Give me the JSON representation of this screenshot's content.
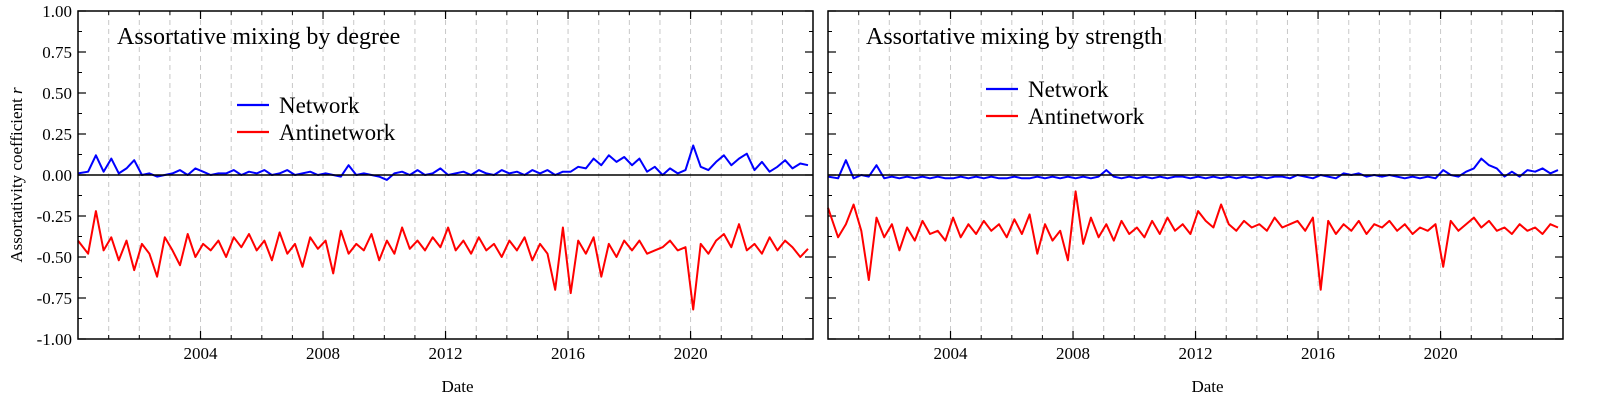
{
  "figure": {
    "ylabel": "Assortativity coefficient r",
    "ylabel_text": "Assortativity coefficient ",
    "ylabel_var": "r"
  },
  "chart_data": [
    {
      "type": "line",
      "title": "Assortative mixing by degree",
      "xlabel": "Date",
      "ylabel": "Assortativity coefficient r",
      "xlim": [
        "2000-01-01",
        "2023-12-31"
      ],
      "ylim": [
        -1.0,
        1.0
      ],
      "x_ticks": [
        "2004",
        "2008",
        "2012",
        "2016",
        "2020"
      ],
      "y_ticks": [
        "1.00",
        "0.75",
        "0.50",
        "0.25",
        "0.00",
        "-0.25",
        "-0.50",
        "-0.75",
        "-1.00"
      ],
      "grid": "dashed vertical lines at each year",
      "reference_line_y": 0.0,
      "legend": [
        "Network",
        "Antinetwork"
      ],
      "series": [
        {
          "name": "Network",
          "color": "#0000ff",
          "x": [
            "2000-01",
            "2000-05",
            "2000-08",
            "2000-11",
            "2001-02",
            "2001-05",
            "2001-08",
            "2001-11",
            "2002-02",
            "2002-05",
            "2002-08",
            "2002-11",
            "2003-02",
            "2003-05",
            "2003-08",
            "2003-11",
            "2004-02",
            "2004-05",
            "2004-08",
            "2004-11",
            "2005-02",
            "2005-05",
            "2005-08",
            "2005-11",
            "2006-02",
            "2006-05",
            "2006-08",
            "2006-11",
            "2007-02",
            "2007-05",
            "2007-08",
            "2007-11",
            "2008-02",
            "2008-05",
            "2008-08",
            "2008-11",
            "2009-02",
            "2009-05",
            "2009-08",
            "2009-11",
            "2010-02",
            "2010-05",
            "2010-08",
            "2010-11",
            "2011-02",
            "2011-05",
            "2011-08",
            "2011-11",
            "2012-02",
            "2012-05",
            "2012-08",
            "2012-11",
            "2013-02",
            "2013-05",
            "2013-08",
            "2013-11",
            "2014-02",
            "2014-05",
            "2014-08",
            "2014-11",
            "2015-02",
            "2015-05",
            "2015-08",
            "2015-11",
            "2016-02",
            "2016-05",
            "2016-08",
            "2016-11",
            "2017-02",
            "2017-05",
            "2017-08",
            "2017-11",
            "2018-02",
            "2018-05",
            "2018-08",
            "2018-11",
            "2019-02",
            "2019-05",
            "2019-08",
            "2019-11",
            "2020-02",
            "2020-05",
            "2020-08",
            "2020-11",
            "2021-02",
            "2021-05",
            "2021-08",
            "2021-11",
            "2022-02",
            "2022-05",
            "2022-08",
            "2022-11",
            "2023-02",
            "2023-05",
            "2023-08",
            "2023-11"
          ],
          "values": [
            0.01,
            0.02,
            0.12,
            0.02,
            0.1,
            0.01,
            0.04,
            0.09,
            0.0,
            0.01,
            -0.01,
            0.0,
            0.01,
            0.03,
            0.0,
            0.04,
            0.02,
            0.0,
            0.01,
            0.01,
            0.03,
            0.0,
            0.02,
            0.01,
            0.03,
            0.0,
            0.01,
            0.03,
            0.0,
            0.01,
            0.02,
            0.0,
            0.01,
            0.0,
            -0.01,
            0.06,
            0.0,
            0.01,
            0.0,
            -0.01,
            -0.03,
            0.01,
            0.02,
            0.0,
            0.03,
            0.0,
            0.01,
            0.04,
            0.0,
            0.01,
            0.02,
            0.0,
            0.03,
            0.01,
            0.0,
            0.03,
            0.01,
            0.02,
            0.0,
            0.03,
            0.01,
            0.03,
            0.0,
            0.02,
            0.02,
            0.05,
            0.04,
            0.1,
            0.06,
            0.12,
            0.08,
            0.11,
            0.06,
            0.1,
            0.02,
            0.05,
            0.0,
            0.04,
            0.01,
            0.03,
            0.18,
            0.05,
            0.03,
            0.08,
            0.12,
            0.06,
            0.1,
            0.13,
            0.03,
            0.08,
            0.02,
            0.05,
            0.09,
            0.04,
            0.07,
            0.06
          ]
        },
        {
          "name": "Antinetwork",
          "color": "#ff0000",
          "x": [
            "2000-01",
            "2000-05",
            "2000-08",
            "2000-11",
            "2001-02",
            "2001-05",
            "2001-08",
            "2001-11",
            "2002-02",
            "2002-05",
            "2002-08",
            "2002-11",
            "2003-02",
            "2003-05",
            "2003-08",
            "2003-11",
            "2004-02",
            "2004-05",
            "2004-08",
            "2004-11",
            "2005-02",
            "2005-05",
            "2005-08",
            "2005-11",
            "2006-02",
            "2006-05",
            "2006-08",
            "2006-11",
            "2007-02",
            "2007-05",
            "2007-08",
            "2007-11",
            "2008-02",
            "2008-05",
            "2008-08",
            "2008-11",
            "2009-02",
            "2009-05",
            "2009-08",
            "2009-11",
            "2010-02",
            "2010-05",
            "2010-08",
            "2010-11",
            "2011-02",
            "2011-05",
            "2011-08",
            "2011-11",
            "2012-02",
            "2012-05",
            "2012-08",
            "2012-11",
            "2013-02",
            "2013-05",
            "2013-08",
            "2013-11",
            "2014-02",
            "2014-05",
            "2014-08",
            "2014-11",
            "2015-02",
            "2015-05",
            "2015-08",
            "2015-11",
            "2016-02",
            "2016-05",
            "2016-08",
            "2016-11",
            "2017-02",
            "2017-05",
            "2017-08",
            "2017-11",
            "2018-02",
            "2018-05",
            "2018-08",
            "2018-11",
            "2019-02",
            "2019-05",
            "2019-08",
            "2019-11",
            "2020-02",
            "2020-05",
            "2020-08",
            "2020-11",
            "2021-02",
            "2021-05",
            "2021-08",
            "2021-11",
            "2022-02",
            "2022-05",
            "2022-08",
            "2022-11",
            "2023-02",
            "2023-05",
            "2023-08",
            "2023-11"
          ],
          "values": [
            -0.4,
            -0.48,
            -0.22,
            -0.46,
            -0.38,
            -0.52,
            -0.4,
            -0.58,
            -0.42,
            -0.48,
            -0.62,
            -0.38,
            -0.46,
            -0.55,
            -0.36,
            -0.5,
            -0.42,
            -0.46,
            -0.4,
            -0.5,
            -0.38,
            -0.44,
            -0.36,
            -0.46,
            -0.4,
            -0.52,
            -0.35,
            -0.48,
            -0.42,
            -0.56,
            -0.38,
            -0.45,
            -0.4,
            -0.6,
            -0.34,
            -0.48,
            -0.42,
            -0.46,
            -0.36,
            -0.52,
            -0.4,
            -0.48,
            -0.32,
            -0.45,
            -0.4,
            -0.46,
            -0.38,
            -0.44,
            -0.32,
            -0.46,
            -0.4,
            -0.48,
            -0.38,
            -0.46,
            -0.42,
            -0.5,
            -0.4,
            -0.46,
            -0.38,
            -0.52,
            -0.42,
            -0.48,
            -0.7,
            -0.32,
            -0.72,
            -0.4,
            -0.48,
            -0.38,
            -0.62,
            -0.42,
            -0.5,
            -0.4,
            -0.46,
            -0.4,
            -0.48,
            -0.46,
            -0.44,
            -0.4,
            -0.46,
            -0.44,
            -0.82,
            -0.42,
            -0.48,
            -0.4,
            -0.36,
            -0.44,
            -0.3,
            -0.46,
            -0.42,
            -0.48,
            -0.38,
            -0.46,
            -0.4,
            -0.44,
            -0.5,
            -0.45
          ]
        }
      ]
    },
    {
      "type": "line",
      "title": "Assortative mixing by strength",
      "xlabel": "Date",
      "ylabel": "",
      "xlim": [
        "2000-01-01",
        "2023-12-31"
      ],
      "ylim": [
        -1.0,
        1.0
      ],
      "x_ticks": [
        "2004",
        "2008",
        "2012",
        "2016",
        "2020"
      ],
      "grid": "dashed vertical lines at each year",
      "reference_line_y": 0.0,
      "legend": [
        "Network",
        "Antinetwork"
      ],
      "series": [
        {
          "name": "Network",
          "color": "#0000ff",
          "x": [
            "2000-01",
            "2000-05",
            "2000-08",
            "2000-11",
            "2001-02",
            "2001-05",
            "2001-08",
            "2001-11",
            "2002-02",
            "2002-05",
            "2002-08",
            "2002-11",
            "2003-02",
            "2003-05",
            "2003-08",
            "2003-11",
            "2004-02",
            "2004-05",
            "2004-08",
            "2004-11",
            "2005-02",
            "2005-05",
            "2005-08",
            "2005-11",
            "2006-02",
            "2006-05",
            "2006-08",
            "2006-11",
            "2007-02",
            "2007-05",
            "2007-08",
            "2007-11",
            "2008-02",
            "2008-05",
            "2008-08",
            "2008-11",
            "2009-02",
            "2009-05",
            "2009-08",
            "2009-11",
            "2010-02",
            "2010-05",
            "2010-08",
            "2010-11",
            "2011-02",
            "2011-05",
            "2011-08",
            "2011-11",
            "2012-02",
            "2012-05",
            "2012-08",
            "2012-11",
            "2013-02",
            "2013-05",
            "2013-08",
            "2013-11",
            "2014-02",
            "2014-05",
            "2014-08",
            "2014-11",
            "2015-02",
            "2015-05",
            "2015-08",
            "2015-11",
            "2016-02",
            "2016-05",
            "2016-08",
            "2016-11",
            "2017-02",
            "2017-05",
            "2017-08",
            "2017-11",
            "2018-02",
            "2018-05",
            "2018-08",
            "2018-11",
            "2019-02",
            "2019-05",
            "2019-08",
            "2019-11",
            "2020-02",
            "2020-05",
            "2020-08",
            "2020-11",
            "2021-02",
            "2021-05",
            "2021-08",
            "2021-11",
            "2022-02",
            "2022-05",
            "2022-08",
            "2022-11",
            "2023-02",
            "2023-05",
            "2023-08",
            "2023-11"
          ],
          "values": [
            -0.01,
            -0.02,
            0.09,
            -0.02,
            0.0,
            -0.01,
            0.06,
            -0.02,
            -0.01,
            -0.02,
            -0.01,
            -0.02,
            -0.01,
            -0.02,
            -0.01,
            -0.02,
            -0.02,
            -0.01,
            -0.02,
            -0.01,
            -0.02,
            -0.01,
            -0.02,
            -0.02,
            -0.01,
            -0.02,
            -0.02,
            -0.01,
            -0.02,
            -0.01,
            -0.02,
            -0.01,
            -0.02,
            -0.01,
            -0.02,
            -0.01,
            0.03,
            -0.01,
            -0.02,
            -0.01,
            -0.02,
            -0.01,
            -0.02,
            -0.01,
            -0.02,
            -0.01,
            -0.01,
            -0.02,
            -0.01,
            -0.02,
            -0.01,
            -0.02,
            -0.01,
            -0.02,
            -0.01,
            -0.02,
            -0.01,
            -0.02,
            -0.01,
            -0.01,
            -0.02,
            0.0,
            -0.01,
            -0.02,
            0.0,
            -0.01,
            -0.02,
            0.01,
            0.0,
            0.01,
            -0.01,
            0.0,
            -0.01,
            0.0,
            -0.01,
            -0.02,
            -0.01,
            -0.02,
            -0.01,
            -0.02,
            0.03,
            0.0,
            -0.01,
            0.02,
            0.04,
            0.1,
            0.06,
            0.04,
            -0.01,
            0.02,
            -0.01,
            0.03,
            0.02,
            0.04,
            0.01,
            0.03
          ]
        },
        {
          "name": "Antinetwork",
          "color": "#ff0000",
          "x": [
            "2000-01",
            "2000-05",
            "2000-08",
            "2000-11",
            "2001-02",
            "2001-05",
            "2001-08",
            "2001-11",
            "2002-02",
            "2002-05",
            "2002-08",
            "2002-11",
            "2003-02",
            "2003-05",
            "2003-08",
            "2003-11",
            "2004-02",
            "2004-05",
            "2004-08",
            "2004-11",
            "2005-02",
            "2005-05",
            "2005-08",
            "2005-11",
            "2006-02",
            "2006-05",
            "2006-08",
            "2006-11",
            "2007-02",
            "2007-05",
            "2007-08",
            "2007-11",
            "2008-02",
            "2008-05",
            "2008-08",
            "2008-11",
            "2009-02",
            "2009-05",
            "2009-08",
            "2009-11",
            "2010-02",
            "2010-05",
            "2010-08",
            "2010-11",
            "2011-02",
            "2011-05",
            "2011-08",
            "2011-11",
            "2012-02",
            "2012-05",
            "2012-08",
            "2012-11",
            "2013-02",
            "2013-05",
            "2013-08",
            "2013-11",
            "2014-02",
            "2014-05",
            "2014-08",
            "2014-11",
            "2015-02",
            "2015-05",
            "2015-08",
            "2015-11",
            "2016-02",
            "2016-05",
            "2016-08",
            "2016-11",
            "2017-02",
            "2017-05",
            "2017-08",
            "2017-11",
            "2018-02",
            "2018-05",
            "2018-08",
            "2018-11",
            "2019-02",
            "2019-05",
            "2019-08",
            "2019-11",
            "2020-02",
            "2020-05",
            "2020-08",
            "2020-11",
            "2021-02",
            "2021-05",
            "2021-08",
            "2021-11",
            "2022-02",
            "2022-05",
            "2022-08",
            "2022-11",
            "2023-02",
            "2023-05",
            "2023-08",
            "2023-11"
          ],
          "values": [
            -0.2,
            -0.38,
            -0.3,
            -0.18,
            -0.34,
            -0.64,
            -0.26,
            -0.38,
            -0.3,
            -0.46,
            -0.32,
            -0.4,
            -0.28,
            -0.36,
            -0.34,
            -0.4,
            -0.26,
            -0.38,
            -0.3,
            -0.36,
            -0.28,
            -0.34,
            -0.3,
            -0.38,
            -0.27,
            -0.36,
            -0.24,
            -0.48,
            -0.3,
            -0.4,
            -0.34,
            -0.52,
            -0.1,
            -0.42,
            -0.26,
            -0.38,
            -0.3,
            -0.4,
            -0.28,
            -0.36,
            -0.32,
            -0.38,
            -0.28,
            -0.36,
            -0.26,
            -0.34,
            -0.3,
            -0.36,
            -0.22,
            -0.28,
            -0.32,
            -0.18,
            -0.3,
            -0.34,
            -0.28,
            -0.32,
            -0.3,
            -0.34,
            -0.26,
            -0.32,
            -0.3,
            -0.28,
            -0.34,
            -0.26,
            -0.7,
            -0.28,
            -0.36,
            -0.3,
            -0.34,
            -0.28,
            -0.36,
            -0.3,
            -0.32,
            -0.28,
            -0.34,
            -0.3,
            -0.36,
            -0.32,
            -0.34,
            -0.3,
            -0.56,
            -0.28,
            -0.34,
            -0.3,
            -0.26,
            -0.32,
            -0.28,
            -0.34,
            -0.32,
            -0.36,
            -0.3,
            -0.34,
            -0.32,
            -0.36,
            -0.3,
            -0.32
          ]
        }
      ]
    }
  ]
}
